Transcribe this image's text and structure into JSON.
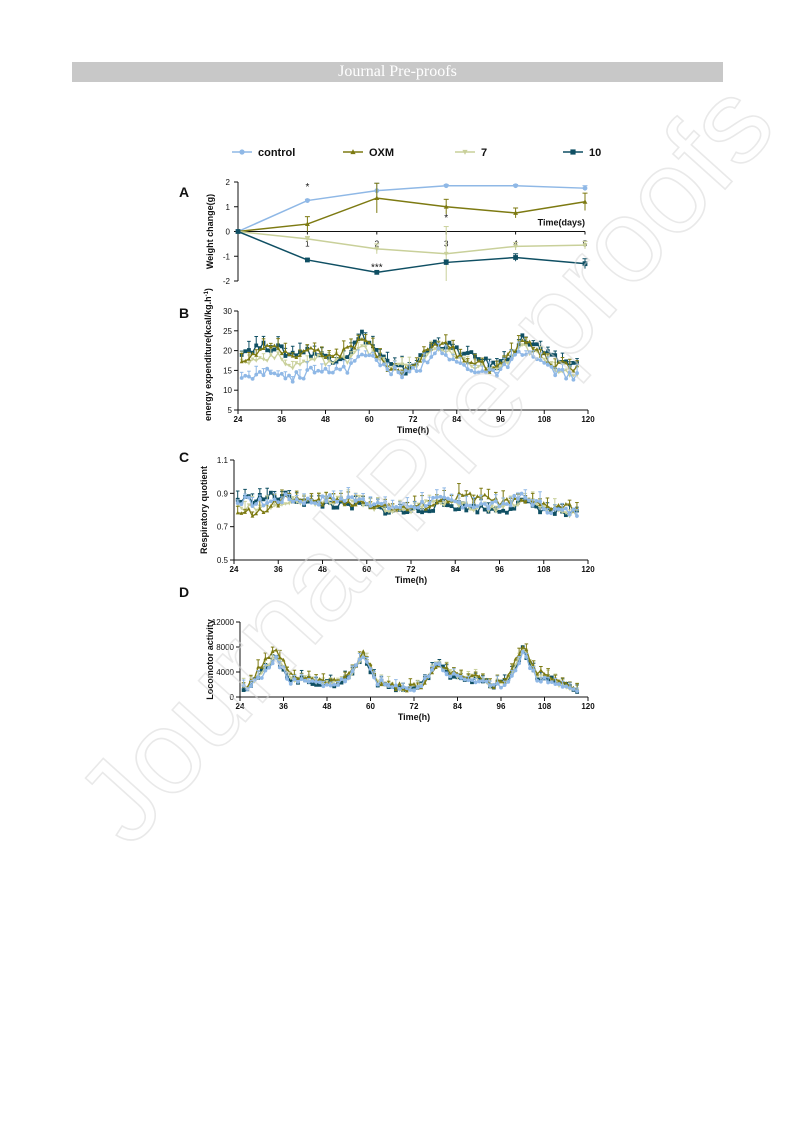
{
  "header": {
    "banner": "Journal Pre-proofs"
  },
  "watermark": {
    "text": "Journal Pre-proofs"
  },
  "legend": [
    {
      "name": "control",
      "color": "#8fb8e6",
      "marker": "circle"
    },
    {
      "name": "OXM",
      "color": "#7d7a12",
      "marker": "triangle"
    },
    {
      "name": "7",
      "color": "#c9d09a",
      "marker": "triangle-down"
    },
    {
      "name": "10",
      "color": "#0f4f63",
      "marker": "square"
    }
  ],
  "chart_data": [
    {
      "panel": "A",
      "type": "line",
      "xlabel": "Time(days)",
      "ylabel": "Weight change(g)",
      "x": [
        0,
        1,
        2,
        3,
        4,
        5
      ],
      "xticks": [
        "1",
        "2",
        "3",
        "4",
        "5"
      ],
      "ylim": [
        -2,
        2
      ],
      "yticks": [
        "2",
        "1",
        "0",
        "-1",
        "-2"
      ],
      "series": [
        {
          "name": "control",
          "values": [
            0,
            1.25,
            1.65,
            1.85,
            1.85,
            1.75
          ],
          "err": [
            0,
            0.05,
            0.3,
            0.05,
            0.05,
            0.1
          ]
        },
        {
          "name": "OXM",
          "values": [
            0,
            0.3,
            1.35,
            1.0,
            0.75,
            1.2
          ],
          "err": [
            0,
            0.3,
            0.6,
            0.3,
            0.2,
            0.35
          ]
        },
        {
          "name": "7",
          "values": [
            0,
            -0.3,
            -0.7,
            -0.9,
            -0.6,
            -0.55
          ],
          "err": [
            0,
            0.1,
            0.2,
            1.1,
            0.15,
            0.15
          ]
        },
        {
          "name": "10",
          "values": [
            0,
            -1.15,
            -1.65,
            -1.25,
            -1.05,
            -1.3
          ],
          "err": [
            0,
            0.05,
            0.05,
            0.1,
            0.15,
            0.2
          ]
        }
      ],
      "annotations": [
        {
          "x": 1,
          "y": 1.8,
          "text": "*"
        },
        {
          "x": 2,
          "y": -1.45,
          "text": "***"
        },
        {
          "x": 3,
          "y": 0.55,
          "text": "*"
        }
      ]
    },
    {
      "panel": "B",
      "type": "line",
      "xlabel": "Time(h)",
      "ylabel": "energy expenditure(kcal/kg.h",
      "ylabel_sup": "-1",
      "ylabel_end": ")",
      "xlim": [
        24,
        120
      ],
      "xticks": [
        "24",
        "36",
        "48",
        "60",
        "72",
        "84",
        "96",
        "108",
        "120"
      ],
      "ylim": [
        5,
        30
      ],
      "yticks": [
        "30",
        "25",
        "20",
        "15",
        "10",
        "5"
      ],
      "profile": {
        "t": [
          26,
          30,
          34,
          38,
          42,
          46,
          50,
          54,
          58,
          62,
          66,
          70,
          74,
          78,
          82,
          86,
          90,
          94,
          98,
          102,
          106,
          110,
          114,
          118
        ],
        "series": [
          {
            "name": "control",
            "values": [
              13,
              14,
              15,
              13,
              14,
              16,
              15,
              15,
              20,
              17,
              15,
              14,
              16,
              20,
              18,
              16,
              15,
              14,
              16,
              20,
              18,
              15,
              14,
              13
            ]
          },
          {
            "name": "OXM",
            "values": [
              18,
              20,
              21,
              18,
              20,
              20,
              18,
              20,
              23,
              19,
              15,
              15,
              18,
              22,
              21,
              18,
              17,
              15,
              18,
              23,
              20,
              17,
              16,
              15
            ]
          },
          {
            "name": "7",
            "values": [
              17,
              18,
              19,
              16,
              17,
              18,
              17,
              18,
              22,
              18,
              16,
              16,
              17,
              21,
              19,
              17,
              16,
              15,
              17,
              21,
              19,
              16,
              15,
              14
            ]
          },
          {
            "name": "10",
            "values": [
              20,
              21,
              21,
              19,
              20,
              19,
              18,
              19,
              24,
              20,
              16,
              15,
              18,
              22,
              21,
              19,
              18,
              16,
              18,
              23,
              21,
              18,
              17,
              16
            ]
          }
        ]
      }
    },
    {
      "panel": "C",
      "type": "line",
      "xlabel": "Time(h)",
      "ylabel": "Respiratory quotient",
      "xlim": [
        24,
        120
      ],
      "xticks": [
        "24",
        "36",
        "48",
        "60",
        "72",
        "84",
        "96",
        "108",
        "120"
      ],
      "ylim": [
        0.5,
        1.1
      ],
      "yticks": [
        "1.1",
        "0.9",
        "0.7",
        "0.5"
      ],
      "profile": {
        "t": [
          26,
          30,
          34,
          38,
          42,
          46,
          50,
          54,
          58,
          62,
          66,
          70,
          74,
          78,
          82,
          86,
          90,
          94,
          98,
          102,
          106,
          110,
          114,
          118
        ],
        "series": [
          {
            "name": "control",
            "values": [
              0.86,
              0.84,
              0.85,
              0.87,
              0.86,
              0.85,
              0.87,
              0.86,
              0.88,
              0.84,
              0.82,
              0.82,
              0.83,
              0.86,
              0.85,
              0.84,
              0.83,
              0.82,
              0.84,
              0.88,
              0.84,
              0.8,
              0.79,
              0.78
            ]
          },
          {
            "name": "OXM",
            "values": [
              0.8,
              0.78,
              0.82,
              0.88,
              0.86,
              0.84,
              0.86,
              0.84,
              0.85,
              0.83,
              0.82,
              0.8,
              0.82,
              0.84,
              0.86,
              0.88,
              0.87,
              0.86,
              0.84,
              0.85,
              0.83,
              0.82,
              0.82,
              0.8
            ]
          },
          {
            "name": "7",
            "values": [
              0.82,
              0.8,
              0.83,
              0.86,
              0.85,
              0.84,
              0.86,
              0.85,
              0.86,
              0.82,
              0.81,
              0.8,
              0.82,
              0.85,
              0.84,
              0.83,
              0.82,
              0.81,
              0.83,
              0.86,
              0.83,
              0.8,
              0.79,
              0.77
            ]
          },
          {
            "name": "10",
            "values": [
              0.86,
              0.87,
              0.88,
              0.88,
              0.86,
              0.83,
              0.84,
              0.82,
              0.83,
              0.81,
              0.8,
              0.79,
              0.8,
              0.82,
              0.83,
              0.82,
              0.81,
              0.8,
              0.81,
              0.84,
              0.82,
              0.79,
              0.78,
              0.77
            ]
          }
        ]
      }
    },
    {
      "panel": "D",
      "type": "line",
      "xlabel": "Time(h)",
      "ylabel": "Locomotor activity",
      "xlim": [
        24,
        120
      ],
      "xticks": [
        "24",
        "36",
        "48",
        "60",
        "72",
        "84",
        "96",
        "108",
        "120"
      ],
      "ylim": [
        0,
        12000
      ],
      "yticks": [
        "12000",
        "8000",
        "4000",
        "0"
      ],
      "profile": {
        "t": [
          26,
          30,
          34,
          38,
          42,
          46,
          50,
          54,
          58,
          62,
          66,
          70,
          74,
          78,
          82,
          86,
          90,
          94,
          98,
          102,
          106,
          110,
          114,
          118
        ],
        "series": [
          {
            "name": "control",
            "values": [
              1500,
              3500,
              6000,
              2500,
              2500,
              2200,
              2000,
              3000,
              6500,
              2500,
              1500,
              1200,
              1800,
              5500,
              3500,
              3000,
              2500,
              1500,
              2500,
              7000,
              3000,
              2500,
              1500,
              1000
            ]
          },
          {
            "name": "OXM",
            "values": [
              2000,
              5000,
              7500,
              4000,
              3000,
              2500,
              2500,
              3500,
              7000,
              2500,
              1800,
              1500,
              2000,
              5000,
              4000,
              3500,
              3000,
              2000,
              3000,
              8500,
              4000,
              3000,
              2000,
              1500
            ]
          },
          {
            "name": "7",
            "values": [
              1800,
              4000,
              6500,
              3000,
              2800,
              2400,
              2200,
              3200,
              6800,
              2400,
              1600,
              1300,
              1900,
              5200,
              3800,
              3200,
              2800,
              1800,
              2800,
              7800,
              3500,
              2800,
              1800,
              1200
            ]
          },
          {
            "name": "10",
            "values": [
              1600,
              3800,
              6200,
              2800,
              2600,
              2300,
              2100,
              3100,
              6600,
              2300,
              1500,
              1200,
              1800,
              5300,
              3600,
              3100,
              2700,
              1700,
              2700,
              7500,
              3200,
              2600,
              1600,
              1100
            ]
          }
        ]
      }
    }
  ]
}
